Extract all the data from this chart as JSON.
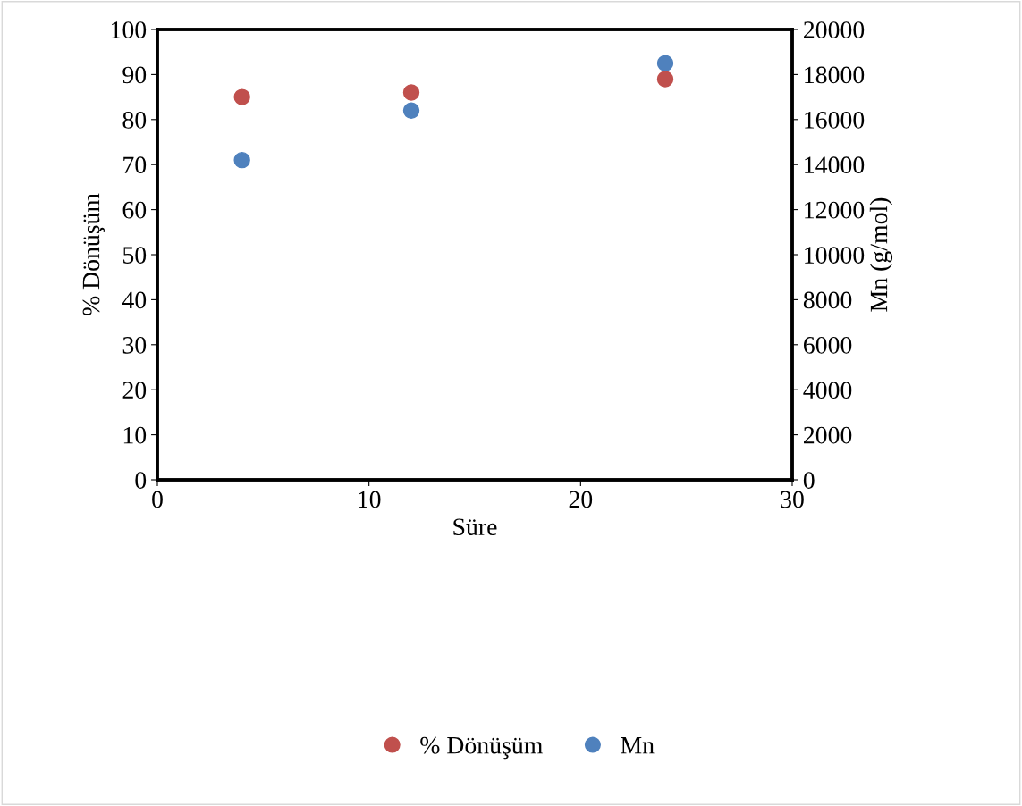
{
  "chart_data": {
    "type": "scatter",
    "xlabel": "Süre",
    "ylabel": "% Dönüşüm",
    "y2label": "Mn (g/mol)",
    "x": [
      4,
      12,
      24
    ],
    "series": [
      {
        "name": "% Dönüşüm",
        "color": "#c0504d",
        "values": [
          85,
          86,
          89
        ]
      },
      {
        "name": "Mn",
        "color": "#4f81bd",
        "values": [
          14200,
          16400,
          18500
        ],
        "axis": "y2"
      }
    ],
    "xlim": [
      0,
      30
    ],
    "xticks": [
      0,
      10,
      20,
      30
    ],
    "ylim": [
      0,
      100
    ],
    "yticks": [
      0,
      10,
      20,
      30,
      40,
      50,
      60,
      70,
      80,
      90,
      100
    ],
    "y2lim": [
      0,
      20000
    ],
    "y2ticks": [
      0,
      2000,
      4000,
      6000,
      8000,
      10000,
      12000,
      14000,
      16000,
      18000,
      20000
    ],
    "marker": "circle",
    "grid": false,
    "legend": "bottom"
  }
}
